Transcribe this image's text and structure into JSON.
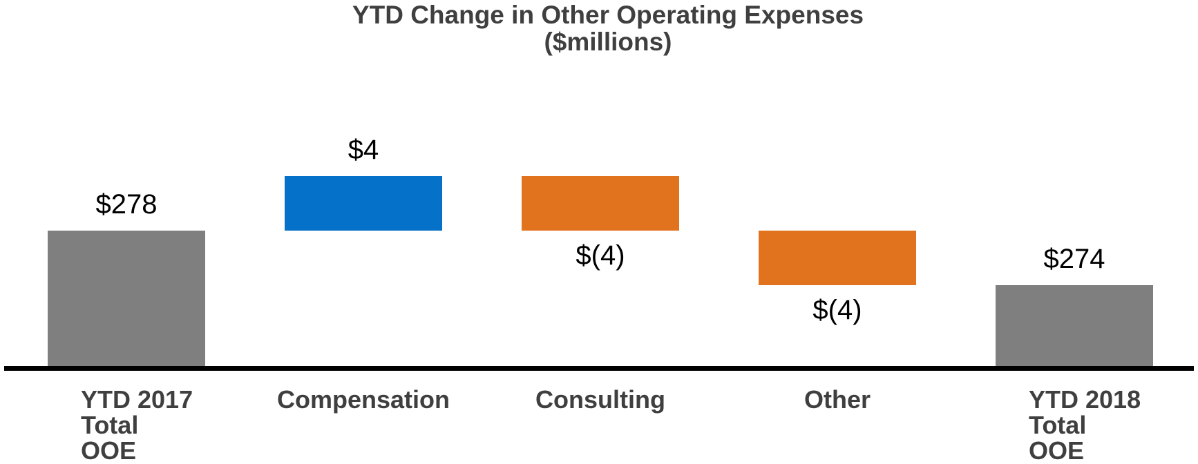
{
  "chart_data": {
    "type": "bar",
    "subtype": "waterfall",
    "title": "YTD Change in Other Operating Expenses",
    "subtitle": "($millions)",
    "unit": "$millions",
    "grid": false,
    "legend": "none",
    "axis": {
      "implied_min": 268,
      "implied_max": 283,
      "baseline_visible": true,
      "tick_labels_visible": false
    },
    "categories": [
      "YTD 2017 Total OOE",
      "Compensation",
      "Consulting",
      "Other",
      "YTD 2018 Total OOE"
    ],
    "bars": [
      {
        "category_lines": [
          "YTD 2017",
          "Total",
          "OOE"
        ],
        "role": "total",
        "value": 278,
        "from": 268,
        "to": 278,
        "label": "$278",
        "label_side": "above",
        "color_key": "total"
      },
      {
        "category_lines": [
          "Compensation"
        ],
        "role": "increase",
        "value": 4,
        "from": 278,
        "to": 282,
        "label": "$4",
        "label_side": "above",
        "color_key": "increase"
      },
      {
        "category_lines": [
          "Consulting"
        ],
        "role": "decrease",
        "value": -4,
        "from": 282,
        "to": 278,
        "label": "$(4)",
        "label_side": "below",
        "color_key": "decrease"
      },
      {
        "category_lines": [
          "Other"
        ],
        "role": "decrease",
        "value": -4,
        "from": 278,
        "to": 274,
        "label": "$(4)",
        "label_side": "below",
        "color_key": "decrease"
      },
      {
        "category_lines": [
          "YTD 2018",
          "Total",
          "OOE"
        ],
        "role": "total",
        "value": 274,
        "from": 268,
        "to": 274,
        "label": "$274",
        "label_side": "above",
        "color_key": "total"
      }
    ],
    "colors": {
      "total": "#7F7F7F",
      "increase": "#0571C8",
      "decrease": "#E1731F",
      "baseline": "#000000",
      "data_label": "#000000",
      "title": "#3F3F3F",
      "category_label": "#3F3F3F",
      "background": "#FFFFFF"
    }
  }
}
